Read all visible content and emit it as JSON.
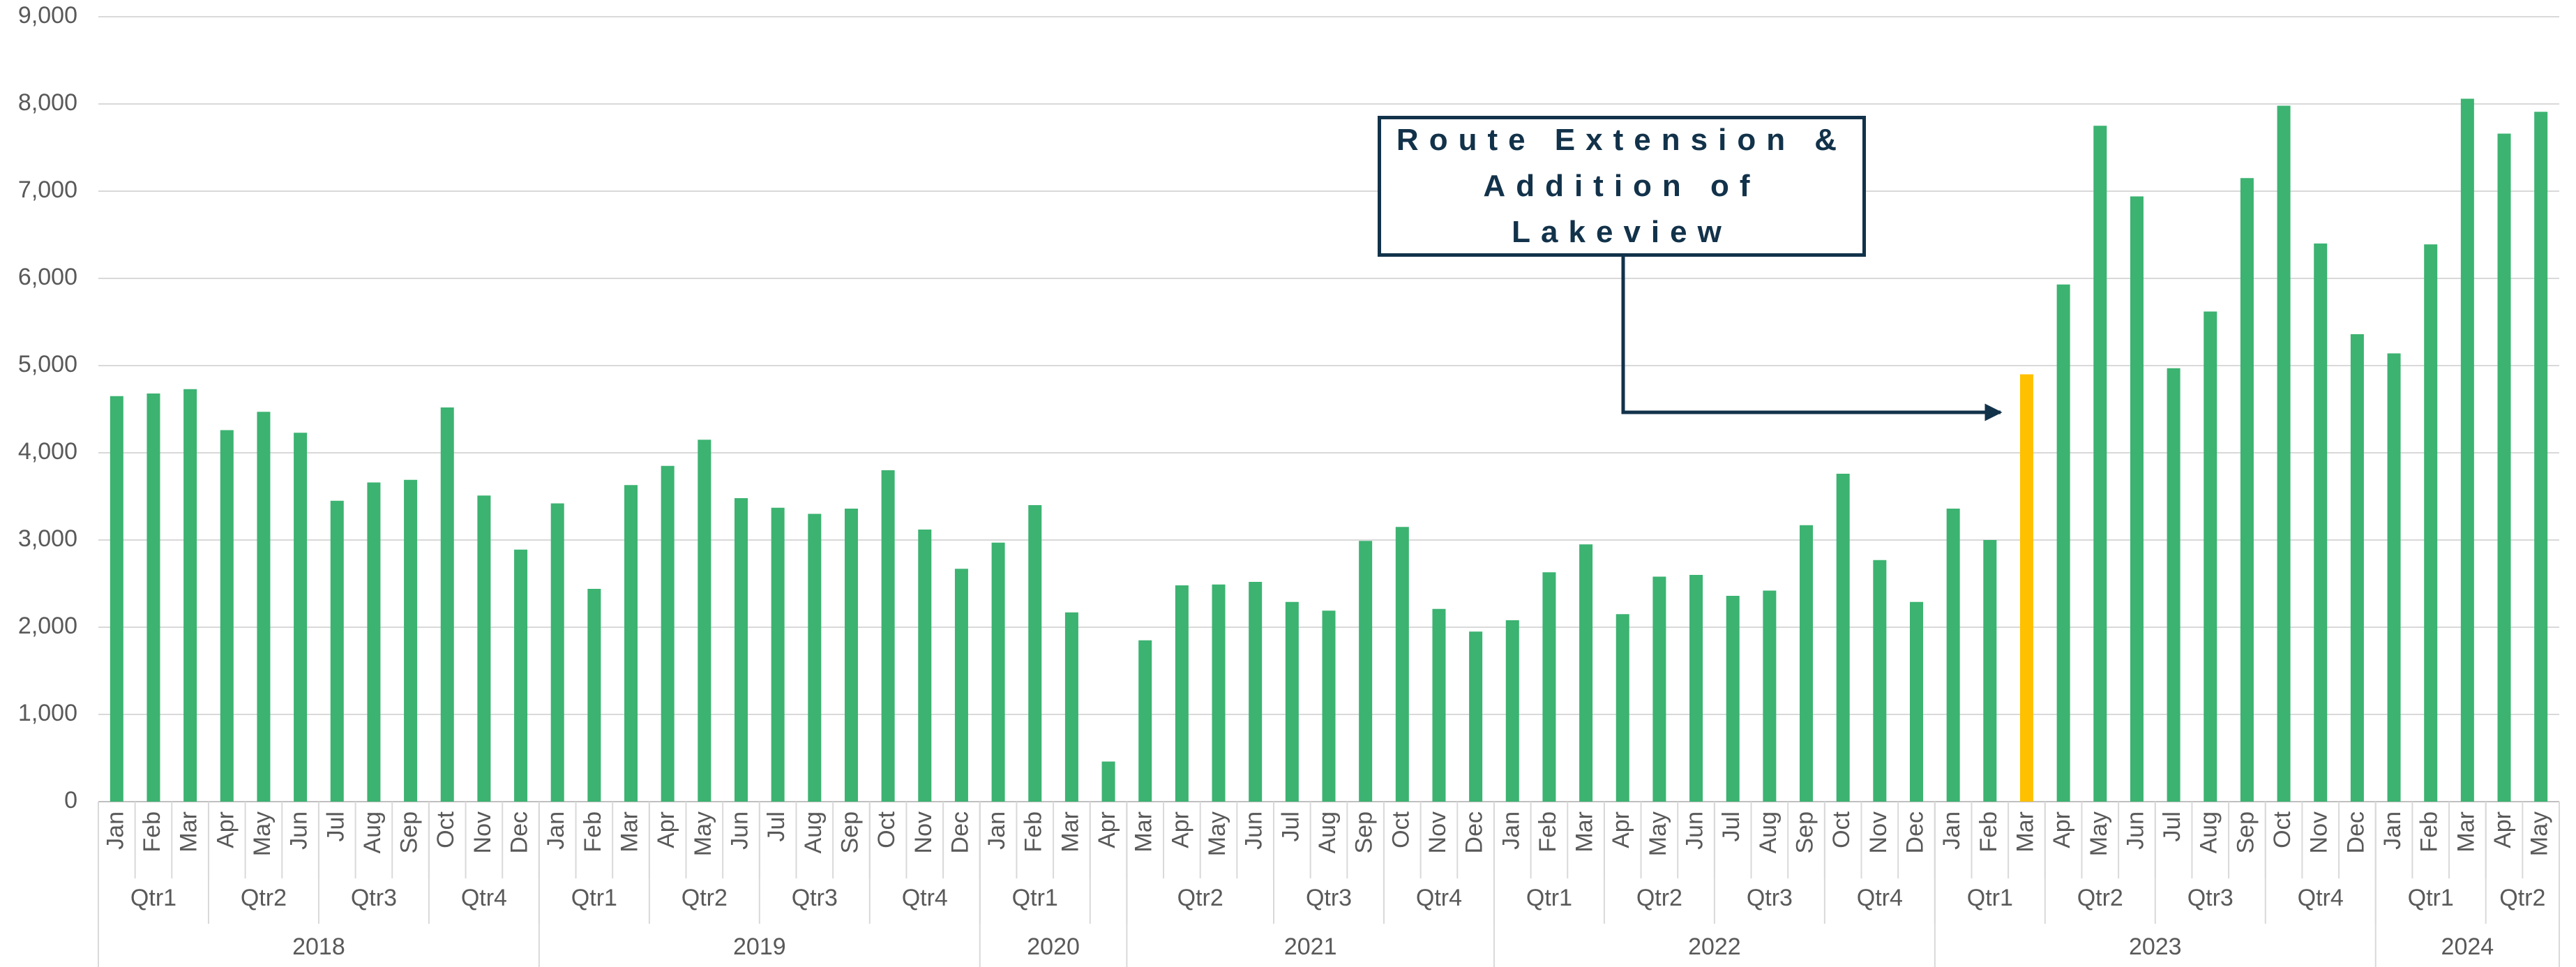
{
  "chart_data": {
    "type": "bar",
    "categories": [
      "Jan",
      "Feb",
      "Mar",
      "Apr",
      "May",
      "Jun",
      "Jul",
      "Aug",
      "Sep",
      "Oct",
      "Nov",
      "Dec",
      "Jan",
      "Feb",
      "Mar",
      "Apr",
      "May",
      "Jun",
      "Jul",
      "Aug",
      "Sep",
      "Oct",
      "Nov",
      "Dec",
      "Jan",
      "Feb",
      "Mar",
      "Apr",
      "Mar",
      "Apr",
      "May",
      "Jun",
      "Jul",
      "Aug",
      "Sep",
      "Oct",
      "Nov",
      "Dec",
      "Jan",
      "Feb",
      "Mar",
      "Apr",
      "May",
      "Jun",
      "Jul",
      "Aug",
      "Sep",
      "Oct",
      "Nov",
      "Dec",
      "Jan",
      "Feb",
      "Mar",
      "Apr",
      "May",
      "Jun",
      "Jul",
      "Aug",
      "Sep",
      "Oct",
      "Nov",
      "Dec",
      "Jan",
      "Feb",
      "Mar",
      "Apr",
      "May"
    ],
    "quarters": [
      {
        "label": "Qtr1",
        "span": 3
      },
      {
        "label": "Qtr2",
        "span": 3
      },
      {
        "label": "Qtr3",
        "span": 3
      },
      {
        "label": "Qtr4",
        "span": 3
      },
      {
        "label": "Qtr1",
        "span": 3
      },
      {
        "label": "Qtr2",
        "span": 3
      },
      {
        "label": "Qtr3",
        "span": 3
      },
      {
        "label": "Qtr4",
        "span": 3
      },
      {
        "label": "Qtr1",
        "span": 3
      },
      {
        "label": null,
        "span": 1
      },
      {
        "label": "Qtr2",
        "span": 4
      },
      {
        "label": "Qtr3",
        "span": 3
      },
      {
        "label": "Qtr4",
        "span": 3
      },
      {
        "label": "Qtr1",
        "span": 3
      },
      {
        "label": "Qtr2",
        "span": 3
      },
      {
        "label": "Qtr3",
        "span": 3
      },
      {
        "label": "Qtr4",
        "span": 3
      },
      {
        "label": "Qtr1",
        "span": 3
      },
      {
        "label": "Qtr2",
        "span": 3
      },
      {
        "label": "Qtr3",
        "span": 3
      },
      {
        "label": "Qtr4",
        "span": 3
      },
      {
        "label": "Qtr1",
        "span": 3
      },
      {
        "label": "Qtr2",
        "span": 2
      }
    ],
    "years": [
      {
        "label": "2018",
        "span": 12
      },
      {
        "label": "2019",
        "span": 12
      },
      {
        "label": "2020",
        "span": 4
      },
      {
        "label": "2021",
        "span": 10
      },
      {
        "label": "2022",
        "span": 12
      },
      {
        "label": "2023",
        "span": 12
      },
      {
        "label": "2024",
        "span": 5
      }
    ],
    "values": [
      4650,
      4680,
      4730,
      4260,
      4470,
      4230,
      3450,
      3660,
      3690,
      4520,
      3510,
      2890,
      3420,
      2440,
      3630,
      3850,
      4150,
      3480,
      3370,
      3300,
      3360,
      3800,
      3120,
      2670,
      2970,
      3400,
      2170,
      460,
      1850,
      2480,
      2490,
      2520,
      2290,
      2190,
      2990,
      3150,
      2210,
      1950,
      2080,
      2630,
      2950,
      2150,
      2580,
      2600,
      2360,
      2420,
      3170,
      3760,
      2770,
      2290,
      3360,
      3000,
      4900,
      5930,
      7750,
      6940,
      4970,
      5620,
      7150,
      7980,
      6400,
      5360,
      5140,
      6390,
      8060,
      7660,
      7910
    ],
    "color": "#3cb371",
    "highlight": {
      "index": 52,
      "color": "#ffc000"
    },
    "ylim": [
      0,
      9000
    ],
    "yticks": [
      0,
      {
        "value": 1000,
        "label": "1,000"
      },
      {
        "value": 2000,
        "label": "2,000"
      },
      {
        "value": 3000,
        "label": "3,000"
      },
      {
        "value": 4000,
        "label": "4,000"
      },
      {
        "value": 5000,
        "label": "5,000"
      },
      {
        "value": 6000,
        "label": "6,000"
      },
      {
        "value": 7000,
        "label": "7,000"
      },
      {
        "value": 8000,
        "label": "8,000"
      },
      {
        "value": 9000,
        "label": "9,000"
      }
    ],
    "grid": true,
    "annotation": "Route Extension & Addition of Lakeview"
  }
}
